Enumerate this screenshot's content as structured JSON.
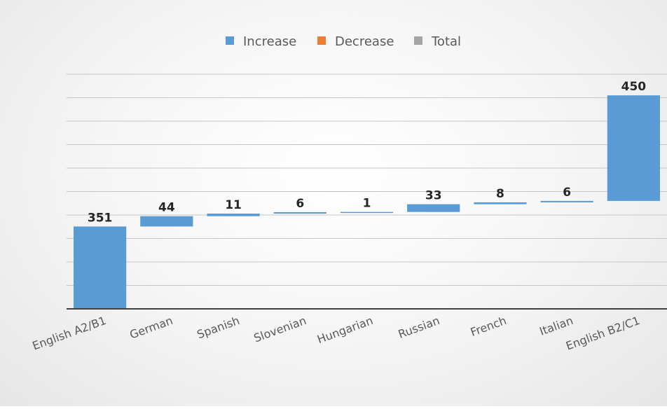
{
  "chart_data": {
    "type": "waterfall",
    "categories": [
      "English A2/B1",
      "German",
      "Spanish",
      "Slovenian",
      "Hungarian",
      "Russian",
      "French",
      "Italian",
      "English B2/C1"
    ],
    "values": [
      351,
      44,
      11,
      6,
      1,
      33,
      8,
      6,
      450
    ],
    "labels": [
      "351",
      "44",
      "11",
      "6",
      "1",
      "33",
      "8",
      "6",
      "450"
    ],
    "legend": [
      "Increase",
      "Decrease",
      "Total"
    ],
    "legend_position": "top",
    "colors": {
      "increase": "#5b9bd5",
      "decrease": "#ed7d31",
      "total": "#a5a5a5",
      "grid": "#c6c6c6",
      "axis": "#404040",
      "label": "#262626",
      "tick": "#595959"
    },
    "ylim": [
      0,
      1000
    ],
    "grid": true
  }
}
